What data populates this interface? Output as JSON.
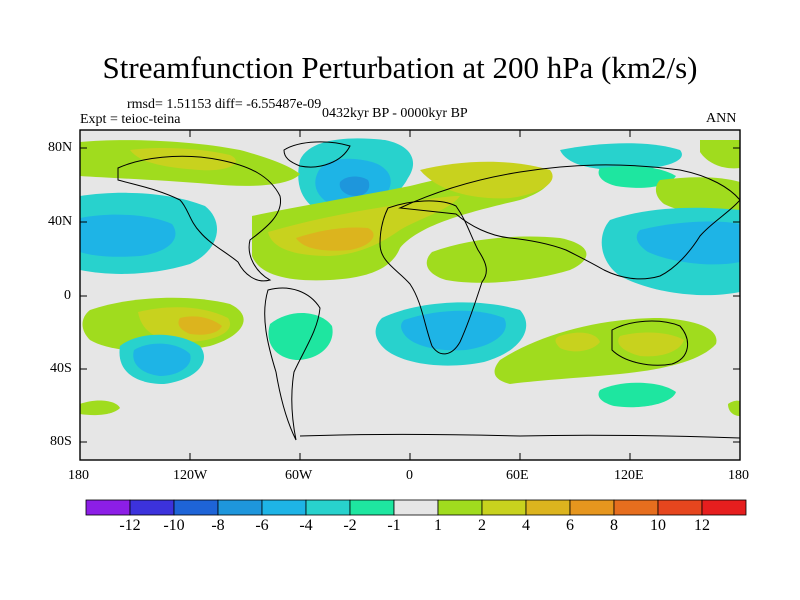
{
  "title": "Streamfunction Perturbation at 200 hPa (km2/s)",
  "stats": "rmsd= 1.51153 diff= -6.55487e-09",
  "experiment": "Expt = teioc-teina",
  "period": "0432kyr BP - 0000kyr BP",
  "season": "ANN",
  "lat_ticks": [
    "80N",
    "40N",
    "0",
    "40S",
    "80S"
  ],
  "lon_ticks": [
    "180",
    "120W",
    "60W",
    "0",
    "60E",
    "120E",
    "180"
  ],
  "colorbar": {
    "labels": [
      "-12",
      "-10",
      "-8",
      "-6",
      "-4",
      "-2",
      "-1",
      "1",
      "2",
      "4",
      "6",
      "8",
      "10",
      "12"
    ],
    "colors": [
      "#8c1ee6",
      "#3c32dc",
      "#1e64d7",
      "#1e96dc",
      "#1eb4e6",
      "#28d2cd",
      "#1ee6a0",
      "#e6e6e6",
      "#a0dc1e",
      "#c8d21e",
      "#dcb41e",
      "#e6961e",
      "#e66e1e",
      "#e6461e",
      "#e61e1e"
    ]
  }
}
